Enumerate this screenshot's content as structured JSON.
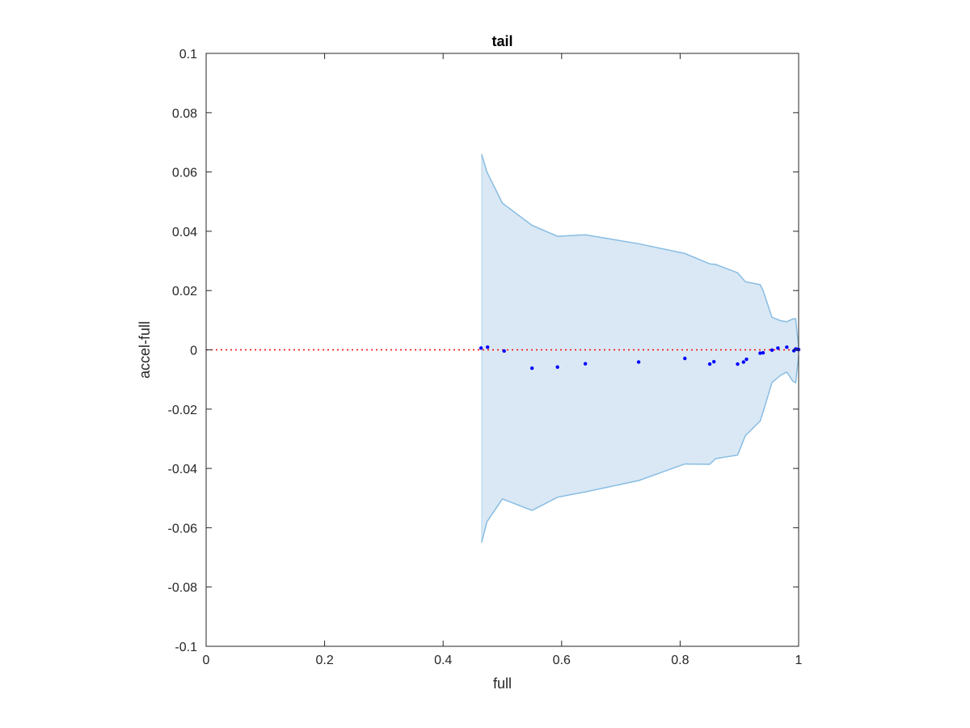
{
  "chart_data": {
    "type": "scatter",
    "title": "tail",
    "xlabel": "full",
    "ylabel": "accel-full",
    "xlim": [
      0,
      1
    ],
    "ylim": [
      -0.1,
      0.1
    ],
    "x_ticks": [
      0,
      0.2,
      0.4,
      0.6,
      0.8,
      1
    ],
    "x_tick_labels": [
      "0",
      "0.2",
      "0.4",
      "0.6",
      "0.8",
      "1"
    ],
    "y_ticks": [
      0.1,
      0.08,
      0.06,
      0.04,
      0.02,
      0,
      -0.02,
      -0.04,
      -0.06,
      -0.08,
      -0.1
    ],
    "y_tick_labels": [
      "0.1",
      "0.08",
      "0.06",
      "0.04",
      "0.02",
      "0",
      "-0.02",
      "-0.04",
      "-0.06",
      "-0.08",
      "-0.1"
    ],
    "grid": false,
    "reference_line": {
      "y": 0,
      "style": "dotted",
      "color": "#ff0000"
    },
    "band": {
      "color": "#d9e8f4",
      "edge_color": "#88bde3",
      "x": [
        0.465,
        0.474,
        0.5,
        0.55,
        0.593,
        0.64,
        0.73,
        0.808,
        0.85,
        0.86,
        0.897,
        0.91,
        0.935,
        0.94,
        0.955,
        0.97,
        0.98,
        0.99,
        0.995,
        1.0
      ],
      "upper": [
        0.066,
        0.06,
        0.0495,
        0.042,
        0.0383,
        0.0388,
        0.0358,
        0.0325,
        0.029,
        0.0288,
        0.026,
        0.023,
        0.022,
        0.02,
        0.011,
        0.0098,
        0.0095,
        0.0104,
        0.0105,
        0.001
      ],
      "lower": [
        -0.065,
        -0.058,
        -0.0503,
        -0.0542,
        -0.0497,
        -0.0479,
        -0.0441,
        -0.0385,
        -0.0386,
        -0.0367,
        -0.0355,
        -0.029,
        -0.024,
        -0.021,
        -0.011,
        -0.0085,
        -0.0075,
        -0.0105,
        -0.0111,
        -0.002
      ]
    },
    "series": [
      {
        "color": "#0000ff",
        "x": [
          0.464,
          0.475,
          0.503,
          0.55,
          0.593,
          0.64,
          0.73,
          0.808,
          0.85,
          0.857,
          0.897,
          0.907,
          0.912,
          0.935,
          0.94,
          0.955,
          0.965,
          0.98,
          0.992,
          0.995,
          0.998,
          1.0
        ],
        "y": [
          0.0006,
          0.0009,
          -0.0004,
          -0.0062,
          -0.0058,
          -0.0047,
          -0.0041,
          -0.0029,
          -0.0048,
          -0.004,
          -0.0048,
          -0.0041,
          -0.0032,
          -0.0011,
          -0.001,
          -0.0001,
          0.0006,
          0.0009,
          -0.0003,
          0.0003,
          0.0002,
          0.0001
        ]
      }
    ]
  }
}
